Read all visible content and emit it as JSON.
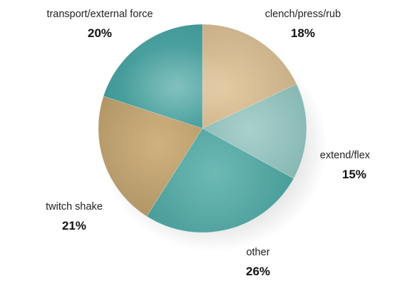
{
  "chart_data": {
    "type": "pie",
    "title": "",
    "legend": "none",
    "slices": [
      {
        "label": "clench/press/rub",
        "pct_label": "18%",
        "value": 18,
        "color": "#b8a07a",
        "color_light": "#e3c9a0"
      },
      {
        "label": "extend/flex",
        "pct_label": "15%",
        "value": 15,
        "color": "#6fa7a2",
        "color_light": "#a9d0cc"
      },
      {
        "label": "other",
        "pct_label": "26%",
        "value": 26,
        "color": "#3b918e",
        "color_light": "#6dbab5"
      },
      {
        "label": "twitch shake",
        "pct_label": "21%",
        "value": 21,
        "color": "#a3875a",
        "color_light": "#cfb27e"
      },
      {
        "label": "transport/external force",
        "pct_label": "20%",
        "value": 20,
        "color": "#2f8a8a",
        "color_light": "#5fb0ad"
      }
    ]
  }
}
